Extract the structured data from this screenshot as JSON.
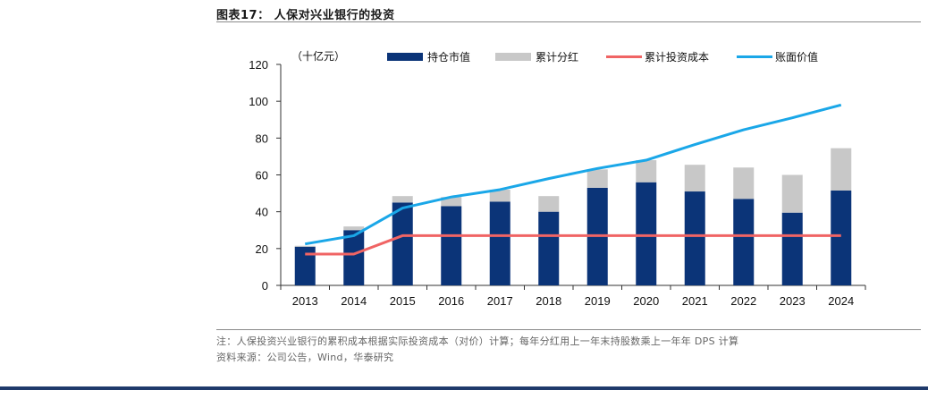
{
  "figure": {
    "title": "图表17：  人保对兴业银行的投资",
    "note": "注：人保投资兴业银行的累积成本根据实际投资成本（对价）计算；每年分红用上一年末持股数乘上一年年 DPS 计算",
    "source": "资料来源：公司公告，Wind，华泰研究"
  },
  "colors": {
    "market_value": "#0b3478",
    "dividends": "#c8c8c8",
    "cost": "#f06464",
    "book_value": "#1aa7e8",
    "footer": "#1f3a6b"
  },
  "chart_data": {
    "type": "bar+line",
    "unit_label": "（十亿元）",
    "categories": [
      "2013",
      "2014",
      "2015",
      "2016",
      "2017",
      "2018",
      "2019",
      "2020",
      "2021",
      "2022",
      "2023",
      "2024"
    ],
    "ylim": [
      0,
      120
    ],
    "yticks": [
      0,
      20,
      40,
      60,
      80,
      100,
      120
    ],
    "series": [
      {
        "name": "持仓市值",
        "type": "bar",
        "stack": "s",
        "values": [
          21,
          30,
          45,
          43,
          45.5,
          40,
          53,
          56,
          51,
          47,
          39.5,
          51.5
        ]
      },
      {
        "name": "累计分红",
        "type": "bar",
        "stack": "s",
        "values": [
          0.5,
          2,
          3.5,
          5,
          6.5,
          8.5,
          10,
          12,
          14.5,
          17,
          20.5,
          23
        ]
      },
      {
        "name": "累计投资成本",
        "type": "line",
        "values": [
          17,
          17,
          27,
          27,
          27,
          27,
          27,
          27,
          27,
          27,
          27,
          27
        ]
      },
      {
        "name": "账面价值",
        "type": "line",
        "values": [
          22.5,
          27,
          42,
          48,
          52,
          58,
          63.5,
          68,
          76.5,
          84.5,
          91,
          98
        ]
      }
    ],
    "legend_position": "top"
  }
}
